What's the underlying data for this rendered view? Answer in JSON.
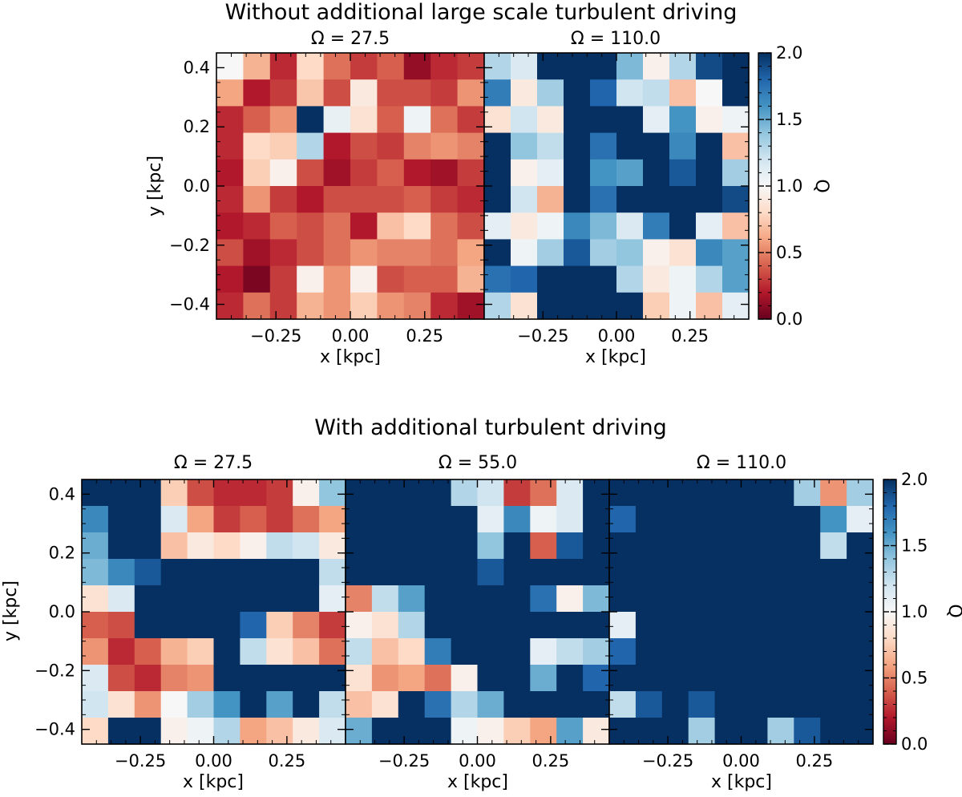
{
  "chart_data": {
    "type": "heatmap",
    "colormap": "RdBu",
    "value_label": "Q",
    "vmin": 0.0,
    "vmax": 2.0,
    "colorbar_ticks": [
      "0.0",
      "0.5",
      "1.0",
      "1.5",
      "2.0"
    ],
    "x_range": [
      -0.45,
      0.45
    ],
    "y_range": [
      -0.45,
      0.45
    ],
    "xlabel": "x [kpc]",
    "ylabel": "y [kpc]",
    "x_tick_labels": [
      "−0.25",
      "0.00",
      "0.25"
    ],
    "y_tick_labels": [
      "−0.4",
      "−0.2",
      "0.0",
      "0.2",
      "0.4"
    ],
    "rows": [
      {
        "title": "Without additional large scale turbulent driving",
        "panels": [
          {
            "title": "Ω = 27.5",
            "grid": [
              [
                1.0,
                0.65,
                0.25,
                0.8,
                0.45,
                0.3,
                0.4,
                0.12,
                0.25,
                0.3
              ],
              [
                0.6,
                0.2,
                0.3,
                0.72,
                0.35,
                0.9,
                0.35,
                0.35,
                0.3,
                0.55
              ],
              [
                0.25,
                0.4,
                0.55,
                2.0,
                1.08,
                0.85,
                0.4,
                1.05,
                0.45,
                0.3
              ],
              [
                0.25,
                0.8,
                0.75,
                1.3,
                0.2,
                0.35,
                0.3,
                0.5,
                0.55,
                0.5
              ],
              [
                0.2,
                0.75,
                0.95,
                0.35,
                0.15,
                0.3,
                0.4,
                0.2,
                0.15,
                0.3
              ],
              [
                0.25,
                0.55,
                0.3,
                0.2,
                0.35,
                0.35,
                0.35,
                0.4,
                0.3,
                0.25
              ],
              [
                0.2,
                0.25,
                0.4,
                0.35,
                0.45,
                0.2,
                0.7,
                0.8,
                0.45,
                0.35
              ],
              [
                0.35,
                0.15,
                0.25,
                0.35,
                0.45,
                0.55,
                0.5,
                0.5,
                0.45,
                0.6
              ],
              [
                0.2,
                0.05,
                0.3,
                0.95,
                0.55,
                0.95,
                0.35,
                0.4,
                0.4,
                0.65
              ],
              [
                0.25,
                0.45,
                0.3,
                0.65,
                0.55,
                0.75,
                0.55,
                0.5,
                0.25,
                0.15
              ]
            ]
          },
          {
            "title": "Ω = 110.0",
            "grid": [
              [
                1.3,
                1.15,
                2.0,
                2.0,
                2.0,
                1.45,
                0.95,
                1.3,
                1.9,
                2.0
              ],
              [
                1.7,
                0.9,
                1.35,
                2.0,
                1.8,
                1.2,
                1.25,
                0.7,
                1.0,
                2.0
              ],
              [
                0.85,
                1.2,
                0.9,
                2.0,
                2.0,
                2.0,
                1.1,
                1.6,
                0.95,
                1.05
              ],
              [
                2.0,
                1.4,
                1.25,
                2.0,
                1.75,
                2.0,
                2.0,
                1.65,
                2.0,
                0.7
              ],
              [
                2.0,
                0.95,
                1.1,
                2.0,
                1.6,
                1.55,
                2.0,
                1.85,
                2.0,
                1.35
              ],
              [
                2.0,
                1.2,
                0.65,
                2.0,
                1.75,
                2.0,
                2.0,
                2.0,
                2.0,
                1.9
              ],
              [
                1.1,
                0.9,
                1.05,
                1.65,
                1.45,
                1.15,
                1.7,
                2.0,
                1.1,
                0.7
              ],
              [
                2.0,
                1.05,
                1.35,
                1.85,
                1.35,
                1.4,
                0.95,
                0.85,
                1.65,
                1.55
              ],
              [
                1.75,
                1.8,
                2.0,
                2.0,
                2.0,
                1.3,
                0.9,
                1.05,
                1.3,
                1.55
              ],
              [
                1.3,
                0.85,
                2.0,
                2.0,
                2.0,
                2.0,
                0.75,
                1.05,
                0.7,
                1.1
              ]
            ]
          }
        ]
      },
      {
        "title": "With additional turbulent driving",
        "panels": [
          {
            "title": "Ω = 27.5",
            "grid": [
              [
                2.0,
                2.0,
                2.0,
                0.75,
                0.35,
                0.25,
                0.25,
                0.3,
                0.95,
                1.4
              ],
              [
                1.65,
                2.0,
                2.0,
                1.15,
                0.6,
                0.3,
                0.4,
                0.3,
                0.45,
                0.6
              ],
              [
                1.5,
                2.0,
                2.0,
                0.7,
                0.9,
                0.8,
                0.95,
                1.25,
                1.2,
                0.9
              ],
              [
                1.45,
                1.65,
                1.85,
                2.0,
                2.0,
                2.0,
                2.0,
                2.0,
                2.0,
                1.25
              ],
              [
                0.85,
                1.15,
                2.0,
                2.0,
                2.0,
                2.0,
                2.0,
                2.0,
                2.0,
                1.1
              ],
              [
                0.4,
                0.35,
                2.0,
                2.0,
                2.0,
                2.0,
                1.8,
                0.75,
                0.5,
                0.3
              ],
              [
                0.55,
                0.25,
                0.4,
                0.65,
                0.75,
                2.0,
                1.25,
                0.85,
                0.7,
                0.45
              ],
              [
                1.15,
                0.35,
                0.25,
                0.5,
                0.55,
                2.0,
                2.0,
                2.0,
                2.0,
                2.0
              ],
              [
                1.2,
                0.85,
                0.55,
                1.0,
                1.35,
                1.6,
                2.0,
                1.55,
                2.0,
                1.25
              ],
              [
                0.8,
                2.0,
                2.0,
                0.95,
                1.05,
                1.3,
                0.6,
                0.7,
                0.9,
                1.15
              ]
            ]
          },
          {
            "title": "Ω = 55.0",
            "grid": [
              [
                2.0,
                2.0,
                2.0,
                2.0,
                1.3,
                1.2,
                0.3,
                0.45,
                1.15,
                2.0
              ],
              [
                2.0,
                2.0,
                2.0,
                2.0,
                2.0,
                1.1,
                1.65,
                1.05,
                1.15,
                2.0
              ],
              [
                2.0,
                2.0,
                2.0,
                2.0,
                2.0,
                1.4,
                2.0,
                0.4,
                1.85,
                2.0
              ],
              [
                2.0,
                2.0,
                2.0,
                2.0,
                2.0,
                1.85,
                2.0,
                2.0,
                2.0,
                2.0
              ],
              [
                0.5,
                1.25,
                1.55,
                2.0,
                2.0,
                2.0,
                2.0,
                1.75,
                0.95,
                1.45
              ],
              [
                0.95,
                0.85,
                1.3,
                2.0,
                2.0,
                2.0,
                2.0,
                2.0,
                2.0,
                2.0
              ],
              [
                1.25,
                0.7,
                0.8,
                1.7,
                2.0,
                2.0,
                2.0,
                1.1,
                1.25,
                1.35
              ],
              [
                0.85,
                0.55,
                0.6,
                0.45,
                0.95,
                2.0,
                2.0,
                1.5,
                2.0,
                1.8
              ],
              [
                0.7,
                0.85,
                2.0,
                1.75,
                1.3,
                1.5,
                2.0,
                2.0,
                2.0,
                2.0
              ],
              [
                1.5,
                2.0,
                2.0,
                2.0,
                1.05,
                0.95,
                0.75,
                0.6,
                1.55,
                0.9
              ]
            ]
          },
          {
            "title": "Ω = 110.0",
            "grid": [
              [
                2.0,
                2.0,
                2.0,
                2.0,
                2.0,
                2.0,
                2.0,
                1.35,
                0.55,
                1.35
              ],
              [
                1.8,
                2.0,
                2.0,
                2.0,
                2.0,
                2.0,
                2.0,
                2.0,
                1.6,
                1.1
              ],
              [
                2.0,
                2.0,
                2.0,
                2.0,
                2.0,
                2.0,
                2.0,
                2.0,
                1.25,
                2.0
              ],
              [
                2.0,
                2.0,
                2.0,
                2.0,
                2.0,
                2.0,
                2.0,
                2.0,
                2.0,
                2.0
              ],
              [
                2.0,
                2.0,
                2.0,
                2.0,
                2.0,
                2.0,
                2.0,
                2.0,
                2.0,
                2.0
              ],
              [
                1.1,
                2.0,
                2.0,
                2.0,
                2.0,
                2.0,
                2.0,
                2.0,
                2.0,
                2.0
              ],
              [
                1.8,
                2.0,
                2.0,
                2.0,
                2.0,
                2.0,
                2.0,
                2.0,
                2.0,
                2.0
              ],
              [
                2.0,
                2.0,
                2.0,
                2.0,
                2.0,
                2.0,
                2.0,
                2.0,
                2.0,
                2.0
              ],
              [
                1.25,
                1.85,
                2.0,
                1.85,
                2.0,
                2.0,
                2.0,
                2.0,
                2.0,
                2.0
              ],
              [
                2.0,
                2.0,
                2.0,
                1.35,
                2.0,
                2.0,
                1.35,
                1.85,
                2.0,
                2.0
              ]
            ]
          }
        ]
      }
    ]
  }
}
